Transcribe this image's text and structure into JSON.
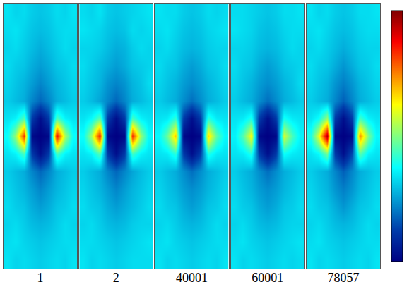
{
  "chart_data": {
    "type": "heatmap",
    "color": "Jet",
    "zlim": [
      0,
      1
    ],
    "tick_labels": false,
    "grid": false,
    "panels": [
      {
        "label": "1",
        "cells": [
          [
            0.34,
            0.32,
            0.33,
            0.31,
            0.3,
            0.31,
            0.33,
            0.32,
            0.34
          ],
          [
            0.33,
            0.34,
            0.32,
            0.3,
            0.29,
            0.3,
            0.32,
            0.33,
            0.33
          ],
          [
            0.32,
            0.33,
            0.31,
            0.29,
            0.27,
            0.29,
            0.31,
            0.33,
            0.32
          ],
          [
            0.33,
            0.31,
            0.3,
            0.27,
            0.25,
            0.27,
            0.3,
            0.31,
            0.33
          ],
          [
            0.32,
            0.3,
            0.28,
            0.25,
            0.22,
            0.25,
            0.28,
            0.3,
            0.32
          ],
          [
            0.31,
            0.29,
            0.27,
            0.22,
            0.18,
            0.22,
            0.27,
            0.29,
            0.31
          ],
          [
            0.34,
            0.36,
            0.45,
            0.12,
            0.03,
            0.12,
            0.45,
            0.36,
            0.34
          ],
          [
            0.38,
            0.52,
            0.82,
            0.02,
            0.0,
            0.02,
            0.88,
            0.54,
            0.38
          ],
          [
            0.34,
            0.36,
            0.44,
            0.12,
            0.03,
            0.12,
            0.44,
            0.36,
            0.34
          ],
          [
            0.31,
            0.29,
            0.27,
            0.22,
            0.18,
            0.22,
            0.27,
            0.29,
            0.31
          ],
          [
            0.32,
            0.3,
            0.28,
            0.25,
            0.22,
            0.25,
            0.28,
            0.3,
            0.32
          ],
          [
            0.33,
            0.31,
            0.3,
            0.27,
            0.25,
            0.27,
            0.3,
            0.31,
            0.33
          ],
          [
            0.32,
            0.33,
            0.31,
            0.29,
            0.28,
            0.29,
            0.31,
            0.33,
            0.32
          ],
          [
            0.33,
            0.34,
            0.32,
            0.31,
            0.3,
            0.31,
            0.32,
            0.33,
            0.33
          ],
          [
            0.34,
            0.32,
            0.33,
            0.32,
            0.31,
            0.32,
            0.33,
            0.32,
            0.34
          ]
        ]
      },
      {
        "label": "2",
        "cells": [
          [
            0.33,
            0.32,
            0.34,
            0.31,
            0.3,
            0.31,
            0.32,
            0.33,
            0.34
          ],
          [
            0.34,
            0.33,
            0.32,
            0.3,
            0.29,
            0.3,
            0.33,
            0.32,
            0.33
          ],
          [
            0.32,
            0.32,
            0.31,
            0.29,
            0.27,
            0.28,
            0.31,
            0.33,
            0.32
          ],
          [
            0.33,
            0.31,
            0.29,
            0.27,
            0.25,
            0.27,
            0.3,
            0.31,
            0.32
          ],
          [
            0.32,
            0.3,
            0.28,
            0.24,
            0.22,
            0.24,
            0.28,
            0.3,
            0.33
          ],
          [
            0.31,
            0.29,
            0.26,
            0.22,
            0.18,
            0.22,
            0.27,
            0.29,
            0.31
          ],
          [
            0.34,
            0.37,
            0.46,
            0.12,
            0.03,
            0.12,
            0.44,
            0.36,
            0.34
          ],
          [
            0.38,
            0.53,
            0.85,
            0.02,
            0.0,
            0.02,
            0.84,
            0.52,
            0.37
          ],
          [
            0.34,
            0.36,
            0.45,
            0.12,
            0.03,
            0.12,
            0.43,
            0.36,
            0.34
          ],
          [
            0.31,
            0.29,
            0.27,
            0.22,
            0.18,
            0.22,
            0.26,
            0.29,
            0.31
          ],
          [
            0.32,
            0.3,
            0.28,
            0.25,
            0.22,
            0.25,
            0.28,
            0.3,
            0.32
          ],
          [
            0.33,
            0.31,
            0.3,
            0.27,
            0.25,
            0.27,
            0.29,
            0.31,
            0.33
          ],
          [
            0.32,
            0.33,
            0.31,
            0.29,
            0.28,
            0.29,
            0.31,
            0.32,
            0.32
          ],
          [
            0.33,
            0.33,
            0.32,
            0.31,
            0.3,
            0.31,
            0.32,
            0.33,
            0.34
          ],
          [
            0.34,
            0.32,
            0.33,
            0.32,
            0.31,
            0.32,
            0.33,
            0.33,
            0.33
          ]
        ]
      },
      {
        "label": "40001",
        "cells": [
          [
            0.34,
            0.33,
            0.33,
            0.31,
            0.3,
            0.31,
            0.33,
            0.32,
            0.33
          ],
          [
            0.33,
            0.34,
            0.32,
            0.3,
            0.29,
            0.3,
            0.32,
            0.33,
            0.34
          ],
          [
            0.32,
            0.33,
            0.31,
            0.29,
            0.28,
            0.29,
            0.31,
            0.32,
            0.32
          ],
          [
            0.33,
            0.31,
            0.3,
            0.27,
            0.25,
            0.27,
            0.3,
            0.31,
            0.33
          ],
          [
            0.32,
            0.3,
            0.28,
            0.25,
            0.23,
            0.25,
            0.28,
            0.3,
            0.32
          ],
          [
            0.31,
            0.29,
            0.27,
            0.23,
            0.19,
            0.23,
            0.27,
            0.29,
            0.31
          ],
          [
            0.34,
            0.35,
            0.42,
            0.12,
            0.03,
            0.12,
            0.41,
            0.35,
            0.34
          ],
          [
            0.37,
            0.47,
            0.68,
            0.02,
            0.0,
            0.02,
            0.66,
            0.46,
            0.37
          ],
          [
            0.34,
            0.35,
            0.41,
            0.12,
            0.03,
            0.12,
            0.4,
            0.35,
            0.34
          ],
          [
            0.31,
            0.29,
            0.27,
            0.23,
            0.19,
            0.23,
            0.27,
            0.29,
            0.31
          ],
          [
            0.32,
            0.3,
            0.28,
            0.25,
            0.23,
            0.25,
            0.28,
            0.3,
            0.32
          ],
          [
            0.33,
            0.31,
            0.3,
            0.27,
            0.25,
            0.27,
            0.3,
            0.31,
            0.33
          ],
          [
            0.32,
            0.33,
            0.31,
            0.29,
            0.28,
            0.29,
            0.31,
            0.33,
            0.32
          ],
          [
            0.33,
            0.34,
            0.32,
            0.31,
            0.3,
            0.31,
            0.32,
            0.33,
            0.33
          ],
          [
            0.34,
            0.32,
            0.33,
            0.32,
            0.31,
            0.32,
            0.33,
            0.32,
            0.34
          ]
        ]
      },
      {
        "label": "60001",
        "cells": [
          [
            0.33,
            0.33,
            0.32,
            0.31,
            0.3,
            0.31,
            0.33,
            0.33,
            0.34
          ],
          [
            0.34,
            0.33,
            0.32,
            0.3,
            0.29,
            0.3,
            0.32,
            0.33,
            0.33
          ],
          [
            0.32,
            0.32,
            0.31,
            0.29,
            0.28,
            0.29,
            0.31,
            0.33,
            0.32
          ],
          [
            0.33,
            0.31,
            0.3,
            0.27,
            0.25,
            0.27,
            0.3,
            0.31,
            0.32
          ],
          [
            0.32,
            0.3,
            0.28,
            0.25,
            0.23,
            0.25,
            0.28,
            0.3,
            0.33
          ],
          [
            0.31,
            0.29,
            0.27,
            0.23,
            0.19,
            0.23,
            0.27,
            0.29,
            0.31
          ],
          [
            0.34,
            0.35,
            0.4,
            0.12,
            0.03,
            0.12,
            0.39,
            0.35,
            0.34
          ],
          [
            0.36,
            0.45,
            0.62,
            0.02,
            0.0,
            0.02,
            0.58,
            0.44,
            0.36
          ],
          [
            0.34,
            0.35,
            0.4,
            0.12,
            0.03,
            0.12,
            0.38,
            0.35,
            0.34
          ],
          [
            0.31,
            0.29,
            0.27,
            0.23,
            0.19,
            0.23,
            0.27,
            0.29,
            0.31
          ],
          [
            0.32,
            0.3,
            0.28,
            0.25,
            0.23,
            0.25,
            0.28,
            0.3,
            0.32
          ],
          [
            0.33,
            0.31,
            0.3,
            0.27,
            0.25,
            0.27,
            0.3,
            0.31,
            0.33
          ],
          [
            0.32,
            0.33,
            0.31,
            0.29,
            0.28,
            0.29,
            0.31,
            0.32,
            0.32
          ],
          [
            0.33,
            0.34,
            0.32,
            0.31,
            0.3,
            0.31,
            0.32,
            0.33,
            0.34
          ],
          [
            0.34,
            0.32,
            0.33,
            0.32,
            0.31,
            0.32,
            0.33,
            0.32,
            0.33
          ]
        ]
      },
      {
        "label": "78057",
        "cells": [
          [
            0.34,
            0.32,
            0.33,
            0.31,
            0.3,
            0.31,
            0.33,
            0.33,
            0.34
          ],
          [
            0.33,
            0.34,
            0.32,
            0.3,
            0.29,
            0.3,
            0.32,
            0.33,
            0.33
          ],
          [
            0.32,
            0.33,
            0.31,
            0.29,
            0.27,
            0.29,
            0.31,
            0.32,
            0.32
          ],
          [
            0.33,
            0.31,
            0.3,
            0.27,
            0.24,
            0.27,
            0.3,
            0.31,
            0.33
          ],
          [
            0.32,
            0.3,
            0.28,
            0.24,
            0.21,
            0.24,
            0.28,
            0.3,
            0.32
          ],
          [
            0.31,
            0.29,
            0.27,
            0.22,
            0.17,
            0.22,
            0.27,
            0.29,
            0.31
          ],
          [
            0.34,
            0.38,
            0.52,
            0.12,
            0.03,
            0.12,
            0.44,
            0.36,
            0.34
          ],
          [
            0.4,
            0.6,
            0.95,
            0.02,
            0.0,
            0.02,
            0.74,
            0.5,
            0.37
          ],
          [
            0.34,
            0.37,
            0.48,
            0.12,
            0.03,
            0.14,
            0.46,
            0.36,
            0.34
          ],
          [
            0.31,
            0.29,
            0.27,
            0.22,
            0.17,
            0.22,
            0.27,
            0.29,
            0.31
          ],
          [
            0.32,
            0.3,
            0.28,
            0.24,
            0.21,
            0.24,
            0.28,
            0.3,
            0.32
          ],
          [
            0.33,
            0.31,
            0.3,
            0.27,
            0.24,
            0.27,
            0.3,
            0.31,
            0.33
          ],
          [
            0.32,
            0.33,
            0.31,
            0.29,
            0.28,
            0.29,
            0.31,
            0.33,
            0.32
          ],
          [
            0.33,
            0.34,
            0.32,
            0.31,
            0.3,
            0.31,
            0.32,
            0.33,
            0.33
          ],
          [
            0.34,
            0.32,
            0.33,
            0.32,
            0.31,
            0.32,
            0.33,
            0.32,
            0.34
          ]
        ]
      }
    ]
  }
}
